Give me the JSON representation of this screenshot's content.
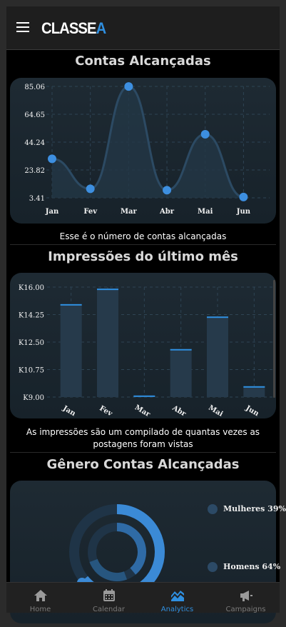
{
  "app": {
    "logo_text": "CLASSE",
    "logo_accent": "A"
  },
  "sections": {
    "reach": {
      "title": "Contas Alcançadas",
      "caption": "Esse é o número de contas alcançadas"
    },
    "impressions": {
      "title": "Impressões do último mês",
      "caption": "As impressões são um compilado de quantas vezes as postagens foram vistas"
    },
    "gender": {
      "title": "Gênero Contas Alcançadas"
    }
  },
  "chart_data": [
    {
      "type": "line",
      "categories": [
        "Jan",
        "Fev",
        "Mar",
        "Abr",
        "Mai",
        "Jun"
      ],
      "values": [
        32,
        10,
        85,
        9,
        50,
        4
      ],
      "yticks": [
        "85.06",
        "64.65",
        "44.24",
        "23.82",
        "3.41"
      ],
      "ylim": [
        3.41,
        85.06
      ],
      "grid": true
    },
    {
      "type": "bar",
      "categories": [
        "Jan",
        "Fev",
        "Mar",
        "Abr",
        "Mai",
        "Jun"
      ],
      "values": [
        14.9,
        15.9,
        9.0,
        12.0,
        14.1,
        9.6
      ],
      "yticks": [
        "K16.00",
        "K14.25",
        "K12.50",
        "K10.75",
        "K9.00"
      ],
      "ylim": [
        8.9,
        16.0
      ],
      "grid": true
    },
    {
      "type": "pie",
      "categories": [
        "Mulheres 39%",
        "Homens 64%"
      ],
      "values": [
        39,
        64
      ]
    }
  ],
  "colors": {
    "accent": "#2f8fe0",
    "point": "#3d8fe0",
    "bar": "#263a4b",
    "card": "#1c2730",
    "donut_outer": "#3b8ad6",
    "donut_inner": "#2f6ba6",
    "donut_track": "#1f3447"
  },
  "nav": {
    "items": [
      {
        "label": "Home",
        "icon": "home-icon"
      },
      {
        "label": "Calendar",
        "icon": "calendar-icon"
      },
      {
        "label": "Analytics",
        "icon": "analytics-icon"
      },
      {
        "label": "Campaigns",
        "icon": "megaphone-icon"
      }
    ]
  }
}
